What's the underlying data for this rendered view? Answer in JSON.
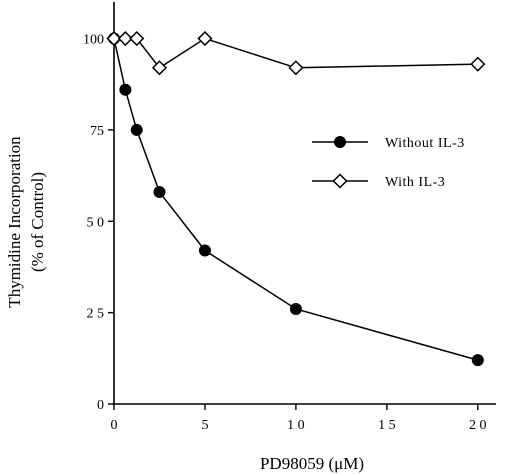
{
  "chart_data": {
    "type": "line",
    "title": "",
    "xlabel": "PD98059  (μM)",
    "ylabel_line1": "Thymidine  Incorporation",
    "ylabel_line2": "(% of Control)",
    "xlim": [
      0,
      21
    ],
    "ylim": [
      0,
      110
    ],
    "xticks": [
      0,
      5,
      10,
      15,
      20
    ],
    "xtick_labels": [
      "0",
      "5",
      "1 0",
      "1 5",
      "2 0"
    ],
    "yticks": [
      0,
      25,
      50,
      75,
      100
    ],
    "ytick_labels": [
      "0",
      "2 5",
      "5 0",
      "75",
      "100"
    ],
    "grid": false,
    "legend_position": "center-right",
    "series": [
      {
        "name": "Without  IL-3",
        "marker": "filled-circle",
        "x": [
          0,
          0.625,
          1.25,
          2.5,
          5,
          10,
          20
        ],
        "y": [
          100,
          86,
          75,
          58,
          42,
          26,
          12
        ]
      },
      {
        "name": "With  IL-3",
        "marker": "open-diamond",
        "x": [
          0,
          0.625,
          1.25,
          2.5,
          5,
          10,
          20
        ],
        "y": [
          100,
          100,
          100,
          92,
          100,
          92,
          93
        ]
      }
    ]
  }
}
